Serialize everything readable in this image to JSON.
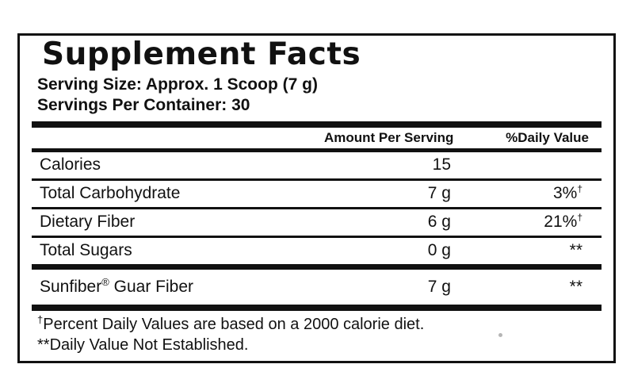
{
  "label": {
    "title": "Supplement Facts",
    "serving_size": "Serving Size: Approx. 1 Scoop (7 g)",
    "servings_per_container": "Servings Per Container: 30",
    "header": {
      "amount": "Amount Per Serving",
      "daily_value": "%Daily Value"
    },
    "rows": [
      {
        "name": "Calories",
        "name_sup": "",
        "name_rest": "",
        "amount": "15",
        "dv": "",
        "dv_sup": ""
      },
      {
        "name": "Total Carbohydrate",
        "name_sup": "",
        "name_rest": "",
        "amount": "7 g",
        "dv": "3%",
        "dv_sup": "†"
      },
      {
        "name": "Dietary Fiber",
        "name_sup": "",
        "name_rest": "",
        "amount": "6 g",
        "dv": "21%",
        "dv_sup": "†"
      },
      {
        "name": "Total Sugars",
        "name_sup": "",
        "name_rest": "",
        "amount": "0 g",
        "dv": "**",
        "dv_sup": ""
      },
      {
        "name": "Sunfiber",
        "name_sup": "®",
        "name_rest": " Guar Fiber",
        "amount": "7 g",
        "dv": "**",
        "dv_sup": ""
      }
    ],
    "footnotes": [
      {
        "sup": "†",
        "text": "Percent Daily Values are based on a 2000 calorie diet."
      },
      {
        "sup": "",
        "text": "**Daily Value Not Established."
      }
    ],
    "colors": {
      "ink": "#111111",
      "background": "#ffffff"
    }
  }
}
